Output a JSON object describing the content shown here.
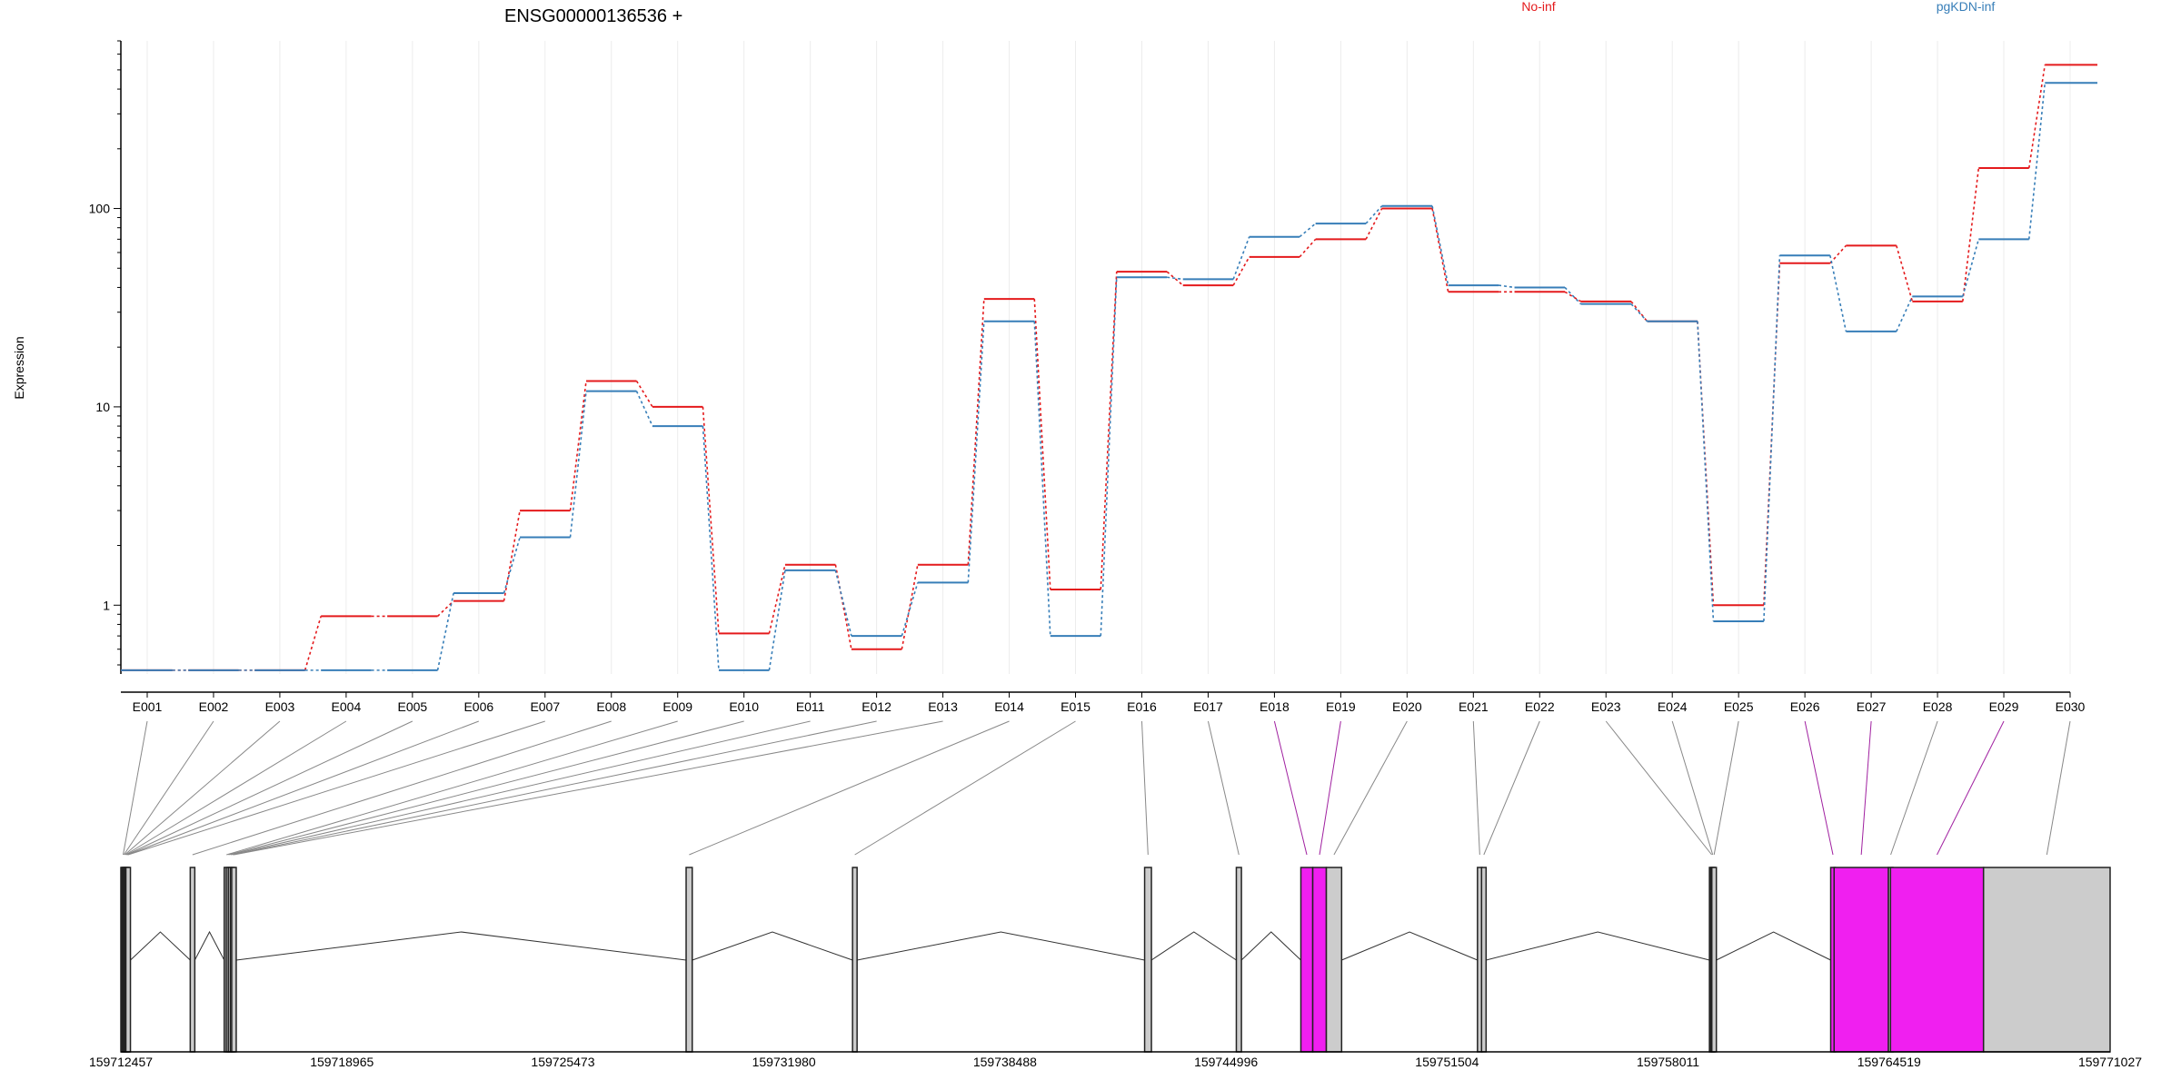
{
  "chart_data": {
    "type": "line",
    "title": "ENSG00000136536 +",
    "ylabel": "Expression",
    "yscale": "log",
    "ylim": [
      0.45,
      700
    ],
    "yticks": [
      1,
      10,
      100
    ],
    "ytick_labels": [
      "1",
      "10",
      "100"
    ],
    "categories": [
      "E001",
      "E002",
      "E003",
      "E004",
      "E005",
      "E006",
      "E007",
      "E008",
      "E009",
      "E010",
      "E011",
      "E012",
      "E013",
      "E014",
      "E015",
      "E016",
      "E017",
      "E018",
      "E019",
      "E020",
      "E021",
      "E022",
      "E023",
      "E024",
      "E025",
      "E026",
      "E027",
      "E028",
      "E029",
      "E030"
    ],
    "series": [
      {
        "name": "No-inf",
        "color": "#e41a1c",
        "values": [
          0.47,
          0.47,
          0.47,
          0.88,
          0.88,
          1.05,
          3.0,
          13.5,
          10.0,
          0.72,
          1.6,
          0.6,
          1.6,
          35.0,
          1.2,
          48.0,
          41.0,
          57.0,
          70.0,
          100.0,
          38.0,
          38.0,
          34.0,
          27.0,
          1.0,
          53.0,
          65.0,
          34.0,
          160.0,
          530.0
        ]
      },
      {
        "name": "pgKDN-inf",
        "color": "#377eb8",
        "values": [
          0.47,
          0.47,
          0.47,
          0.47,
          0.47,
          1.15,
          2.2,
          12.0,
          8.0,
          0.47,
          1.5,
          0.7,
          1.3,
          27.0,
          0.7,
          45.0,
          44.0,
          72.0,
          84.0,
          103.0,
          41.0,
          40.0,
          33.0,
          27.0,
          0.83,
          58.0,
          24.0,
          36.0,
          70.0,
          430.0
        ]
      }
    ],
    "genomic_axis": {
      "ticks": [
        159712457,
        159718965,
        159725473,
        159731980,
        159738488,
        159744996,
        159751504,
        159758011,
        159764519,
        159771027
      ],
      "tick_labels": [
        "159712457",
        "159718965",
        "159725473",
        "159731980",
        "159738488",
        "159744996",
        "159751504",
        "159758011",
        "159764519",
        "159771027"
      ],
      "range": [
        159712457,
        159771027
      ]
    },
    "exons": [
      {
        "id": "E001",
        "start": 159712457,
        "end": 159712480,
        "highlight": false
      },
      {
        "id": "E002",
        "start": 159712480,
        "end": 159712505,
        "highlight": false
      },
      {
        "id": "E003",
        "start": 159712505,
        "end": 159712530,
        "highlight": false
      },
      {
        "id": "E004",
        "start": 159712530,
        "end": 159712555,
        "highlight": false
      },
      {
        "id": "E005",
        "start": 159712555,
        "end": 159712580,
        "highlight": false
      },
      {
        "id": "E006",
        "start": 159712580,
        "end": 159712605,
        "highlight": false
      },
      {
        "id": "E007",
        "start": 159712605,
        "end": 159712630,
        "highlight": false
      },
      {
        "id": "E008",
        "start": 159714500,
        "end": 159714590,
        "highlight": false
      },
      {
        "id": "E009",
        "start": 159715500,
        "end": 159715560,
        "highlight": false
      },
      {
        "id": "E010",
        "start": 159715560,
        "end": 159715620,
        "highlight": false
      },
      {
        "id": "E011",
        "start": 159715620,
        "end": 159715680,
        "highlight": false
      },
      {
        "id": "E012",
        "start": 159715680,
        "end": 159715720,
        "highlight": false
      },
      {
        "id": "E013",
        "start": 159715720,
        "end": 159715760,
        "highlight": false
      },
      {
        "id": "E014",
        "start": 159729100,
        "end": 159729280,
        "highlight": false
      },
      {
        "id": "E015",
        "start": 159734000,
        "end": 159734130,
        "highlight": false
      },
      {
        "id": "E016",
        "start": 159742600,
        "end": 159742800,
        "highlight": false
      },
      {
        "id": "E017",
        "start": 159745300,
        "end": 159745450,
        "highlight": false
      },
      {
        "id": "E018",
        "start": 159747200,
        "end": 159747550,
        "highlight": true
      },
      {
        "id": "E019",
        "start": 159747550,
        "end": 159747950,
        "highlight": true
      },
      {
        "id": "E020",
        "start": 159747950,
        "end": 159748400,
        "highlight": false
      },
      {
        "id": "E021",
        "start": 159752400,
        "end": 159752520,
        "highlight": false
      },
      {
        "id": "E022",
        "start": 159752520,
        "end": 159752600,
        "highlight": false
      },
      {
        "id": "E023",
        "start": 159759230,
        "end": 159759260,
        "highlight": false
      },
      {
        "id": "E024",
        "start": 159759260,
        "end": 159759300,
        "highlight": false
      },
      {
        "id": "E025",
        "start": 159759300,
        "end": 159759340,
        "highlight": false
      },
      {
        "id": "E026",
        "start": 159762800,
        "end": 159762900,
        "highlight": true
      },
      {
        "id": "E027",
        "start": 159762900,
        "end": 159764500,
        "highlight": true
      },
      {
        "id": "E028",
        "start": 159764500,
        "end": 159764560,
        "highlight": false
      },
      {
        "id": "E029",
        "start": 159764560,
        "end": 159767300,
        "highlight": true
      },
      {
        "id": "E030",
        "start": 159767300,
        "end": 159771027,
        "highlight": false
      }
    ],
    "colors": {
      "highlight_fill": "#f01ff0",
      "highlight_link": "#a020a0",
      "exon_fill": "#cccccc",
      "link": "#888888",
      "grid": "#ececec"
    }
  }
}
